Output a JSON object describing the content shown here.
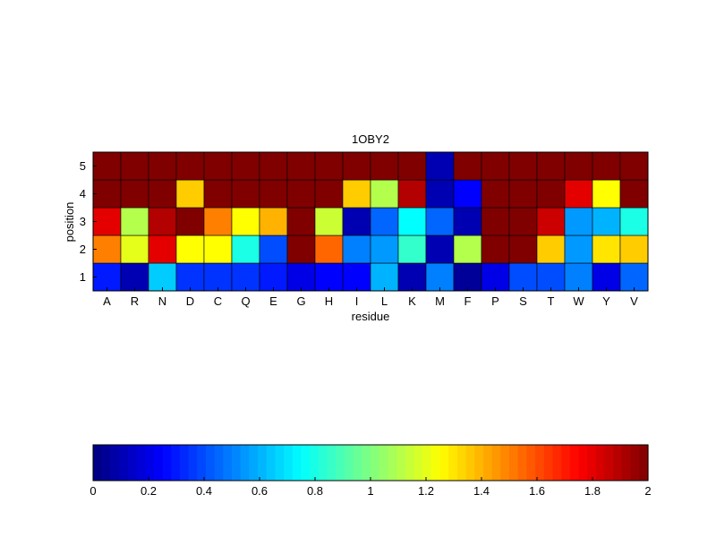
{
  "chart_data": {
    "type": "heatmap",
    "title": "1OBY2",
    "xlabel": "residue",
    "ylabel": "position",
    "x_categories": [
      "A",
      "R",
      "N",
      "D",
      "C",
      "Q",
      "E",
      "G",
      "H",
      "I",
      "L",
      "K",
      "M",
      "F",
      "P",
      "S",
      "T",
      "W",
      "Y",
      "V"
    ],
    "y_categories": [
      "1",
      "2",
      "3",
      "4",
      "5"
    ],
    "values": [
      [
        0.3,
        0.1,
        0.65,
        0.35,
        0.35,
        0.35,
        0.3,
        0.2,
        0.25,
        0.25,
        0.6,
        0.1,
        0.5,
        0.05,
        0.2,
        0.4,
        0.4,
        0.5,
        0.2,
        0.45
      ],
      [
        1.5,
        1.2,
        1.8,
        1.25,
        1.25,
        0.8,
        0.4,
        2.0,
        1.55,
        0.5,
        0.55,
        0.85,
        0.1,
        1.1,
        2.0,
        2.0,
        1.35,
        0.55,
        1.3,
        1.35
      ],
      [
        1.8,
        1.1,
        1.9,
        2.0,
        1.5,
        1.25,
        1.4,
        2.0,
        1.15,
        0.1,
        0.45,
        0.75,
        0.45,
        0.1,
        2.0,
        2.0,
        1.85,
        0.55,
        0.6,
        0.8
      ],
      [
        2.0,
        2.0,
        2.0,
        1.35,
        2.0,
        2.0,
        2.0,
        2.0,
        2.0,
        1.35,
        1.1,
        1.9,
        0.1,
        0.25,
        2.0,
        2.0,
        2.0,
        1.8,
        1.25,
        2.0
      ],
      [
        2.0,
        2.0,
        2.0,
        2.0,
        2.0,
        2.0,
        2.0,
        2.0,
        2.0,
        2.0,
        2.0,
        2.0,
        0.1,
        2.0,
        2.0,
        2.0,
        2.0,
        2.0,
        2.0,
        2.0
      ]
    ],
    "colormap": "jet",
    "clim": [
      0,
      2
    ],
    "colorbar": {
      "orientation": "horizontal",
      "location": "bottom",
      "ticks": [
        "0",
        "0.2",
        "0.4",
        "0.6",
        "0.8",
        "1",
        "1.2",
        "1.4",
        "1.6",
        "1.8",
        "2"
      ]
    }
  }
}
